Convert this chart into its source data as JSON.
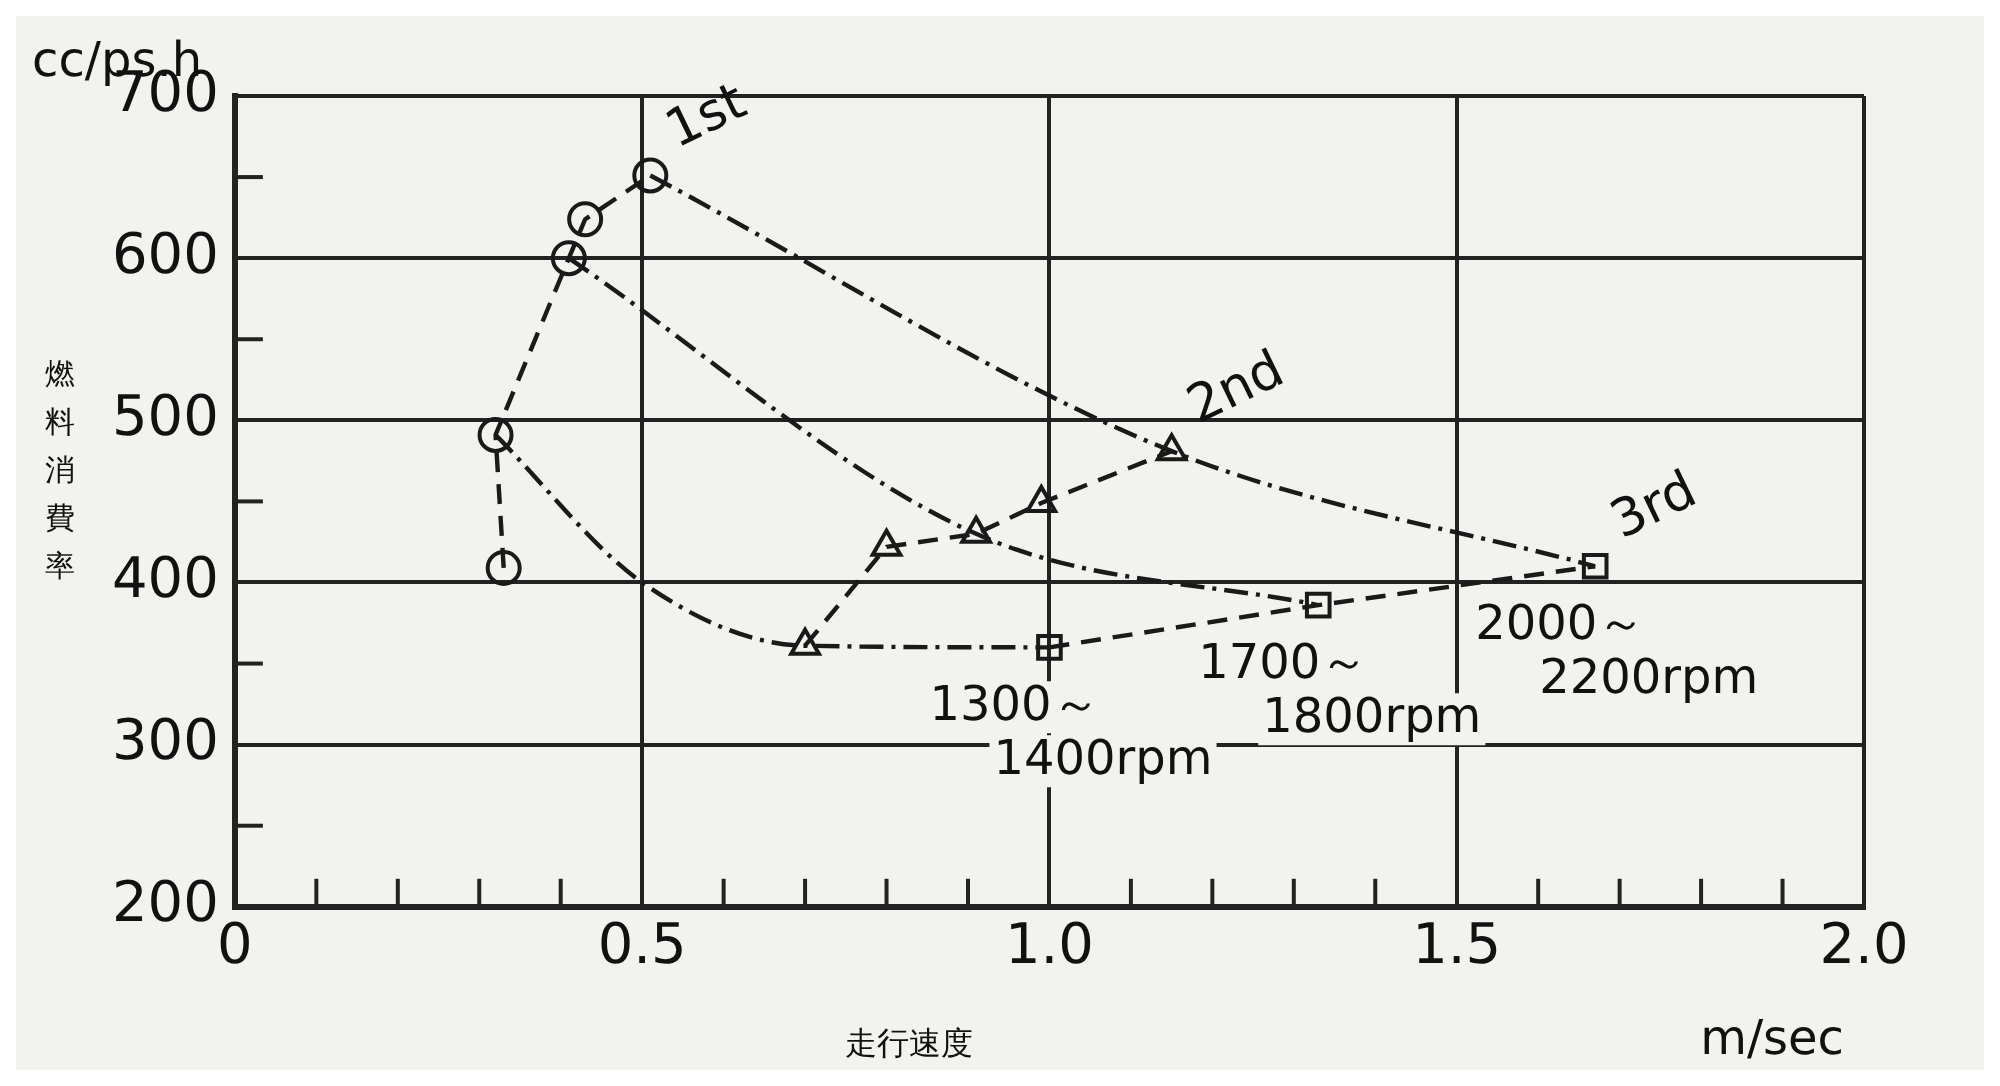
{
  "chart_data": {
    "type": "line",
    "xlabel": "走行速度",
    "ylabel": "燃料消費率",
    "xlim": [
      0,
      2
    ],
    "ylim": [
      200,
      700
    ],
    "xticks": [
      0,
      {
        "value": 0.1,
        "label": null
      },
      {
        "value": 0.2,
        "label": null
      },
      {
        "value": 0.3,
        "label": null
      },
      {
        "value": 0.4,
        "label": null
      },
      0.5,
      {
        "value": 0.6,
        "label": null
      },
      {
        "value": 0.7,
        "label": null
      },
      {
        "value": 0.8,
        "label": null
      },
      {
        "value": 0.9,
        "label": null
      },
      {
        "value": 1,
        "label": "1.0"
      },
      {
        "value": 1.1,
        "label": null
      },
      {
        "value": 1.2,
        "label": null
      },
      {
        "value": 1.3,
        "label": null
      },
      {
        "value": 1.4,
        "label": null
      },
      1.5,
      {
        "value": 1.6,
        "label": null
      },
      {
        "value": 1.7,
        "label": null
      },
      {
        "value": 1.8,
        "label": null
      },
      {
        "value": 1.9,
        "label": null
      },
      {
        "value": 2,
        "label": "2.0"
      }
    ],
    "yticks": [
      200,
      {
        "value": 250,
        "label": null
      },
      300,
      {
        "value": 350,
        "label": null
      },
      400,
      {
        "value": 450,
        "label": null
      },
      500,
      {
        "value": 550,
        "label": null
      },
      600,
      {
        "value": 650,
        "label": null
      },
      700
    ],
    "grid": true,
    "legend": false,
    "series": [
      {
        "name": "1st",
        "color": "#1a1a1a",
        "marker": "circle",
        "line_style": "dashed",
        "x": [
          0.33,
          0.32,
          0.41,
          0.43,
          0.51
        ],
        "values": [
          409,
          491,
          600,
          624,
          651
        ]
      },
      {
        "name": "2nd",
        "color": "#1a1a1a",
        "marker": "triangle",
        "line_style": "dashed",
        "x": [
          0.7,
          0.8,
          0.91,
          0.99,
          1.15
        ],
        "values": [
          361,
          422,
          430,
          449,
          481
        ]
      },
      {
        "name": "3rd",
        "color": "#1a1a1a",
        "marker": "square",
        "line_style": "dashed",
        "x": [
          1.0,
          1.33,
          1.67
        ],
        "values": [
          360,
          386,
          410
        ]
      },
      {
        "color": "#1a1a1a",
        "marker": "none",
        "line_style": "dotted",
        "x": [
          0.32,
          0.5,
          0.7,
          1.0
        ],
        "values": [
          491,
          400,
          361,
          360
        ]
      },
      {
        "color": "#1a1a1a",
        "marker": "none",
        "line_style": "dotted",
        "x": [
          0.41,
          0.91,
          1.33
        ],
        "values": [
          600,
          430,
          386
        ]
      },
      {
        "color": "#1a1a1a",
        "marker": "none",
        "line_style": "dotted",
        "x": [
          0.51,
          1.15,
          1.67
        ],
        "values": [
          651,
          481,
          410
        ]
      }
    ],
    "annotations": [
      "cc/ps.h",
      "m/sec",
      {
        "text": "1300～\n1400rpm",
        "x": 1.0,
        "y": 360
      },
      {
        "text": "1700～\n1800rpm",
        "x": 1.33,
        "y": 386
      },
      {
        "text": "2000～\n2200rpm",
        "x": 1.67,
        "y": 410
      }
    ]
  }
}
